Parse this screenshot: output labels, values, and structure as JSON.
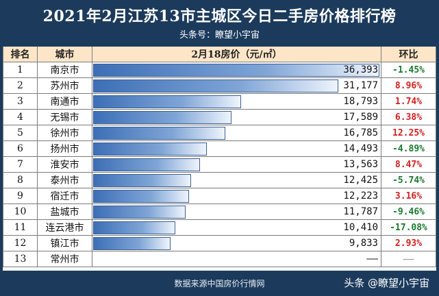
{
  "title": "2021年2月江苏13市主城区今日二手房价格排行榜",
  "subtitle": "头条号：瞭望小宇宙",
  "table": {
    "headers": {
      "rank": "排名",
      "city": "城市",
      "price": "2月18房价（元/㎡）",
      "change": "环比"
    }
  },
  "chart_data": {
    "type": "bar",
    "orientation": "horizontal",
    "max_value": 36393,
    "rows": [
      {
        "rank": "1",
        "city": "南京市",
        "value": 36393,
        "value_text": "36,393",
        "change": "-1.45%",
        "direction": "down"
      },
      {
        "rank": "2",
        "city": "苏州市",
        "value": 31177,
        "value_text": "31,177",
        "change": "8.96%",
        "direction": "up"
      },
      {
        "rank": "3",
        "city": "南通市",
        "value": 18793,
        "value_text": "18,793",
        "change": "1.74%",
        "direction": "up"
      },
      {
        "rank": "4",
        "city": "无锡市",
        "value": 17589,
        "value_text": "17,589",
        "change": "6.38%",
        "direction": "up"
      },
      {
        "rank": "5",
        "city": "徐州市",
        "value": 16785,
        "value_text": "16,785",
        "change": "12.25%",
        "direction": "up"
      },
      {
        "rank": "6",
        "city": "扬州市",
        "value": 14493,
        "value_text": "14,493",
        "change": "-4.89%",
        "direction": "down"
      },
      {
        "rank": "7",
        "city": "淮安市",
        "value": 13563,
        "value_text": "13,563",
        "change": "8.47%",
        "direction": "up"
      },
      {
        "rank": "8",
        "city": "泰州市",
        "value": 12425,
        "value_text": "12,425",
        "change": "-5.74%",
        "direction": "down"
      },
      {
        "rank": "9",
        "city": "宿迁市",
        "value": 12223,
        "value_text": "12,223",
        "change": "3.16%",
        "direction": "up"
      },
      {
        "rank": "10",
        "city": "盐城市",
        "value": 11787,
        "value_text": "11,787",
        "change": "-9.46%",
        "direction": "down"
      },
      {
        "rank": "11",
        "city": "连云港市",
        "value": 10410,
        "value_text": "10,410",
        "change": "-17.08%",
        "direction": "down"
      },
      {
        "rank": "12",
        "city": "镇江市",
        "value": 9833,
        "value_text": "9,833",
        "change": "2.93%",
        "direction": "up"
      },
      {
        "rank": "13",
        "city": "常州市",
        "value": null,
        "value_text": "——",
        "change": "——",
        "direction": "none"
      }
    ]
  },
  "footer": {
    "source": "数据来源中国房价行情网",
    "watermark": "头条 @瞭望小宇宙"
  },
  "colors": {
    "header_bg": "#1c3b5c",
    "table_header_bg": "#fde6c8",
    "bar": "#3d6fb6",
    "up": "#d42020",
    "down": "#1a7a2f"
  }
}
